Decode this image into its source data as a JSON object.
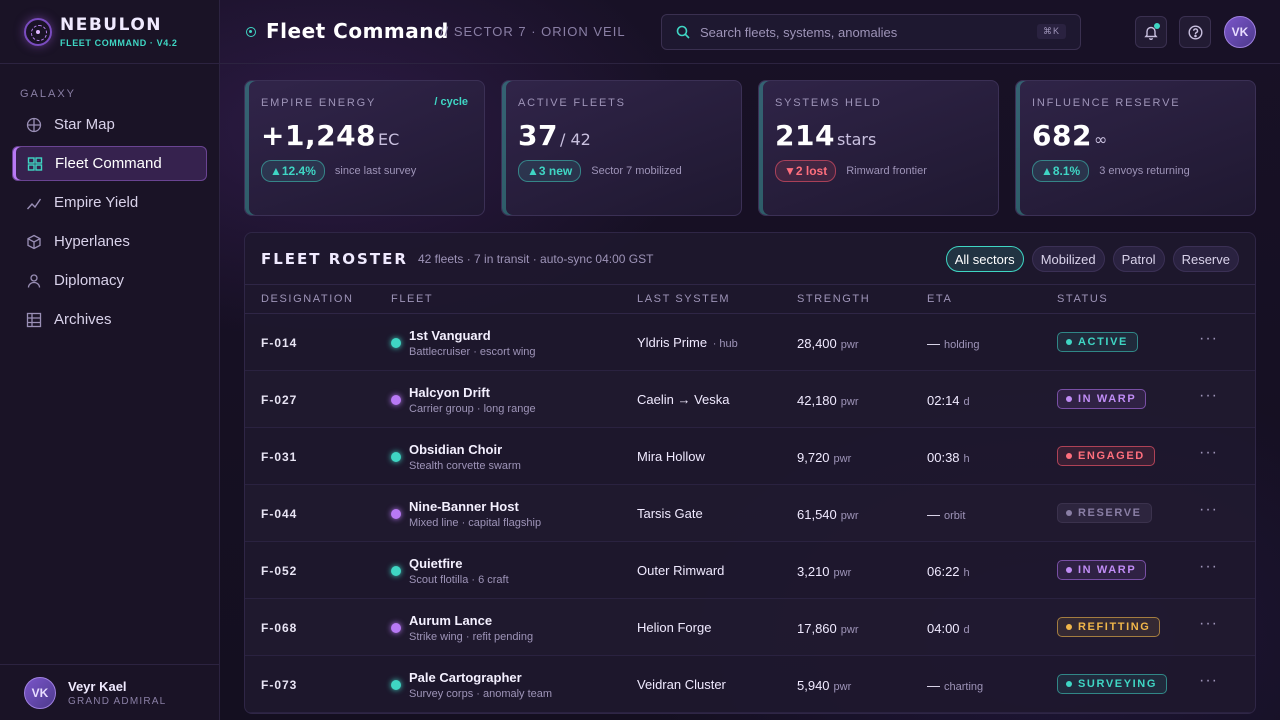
{
  "brand": {
    "name": "NEBULON",
    "sub": "FLEET COMMAND · V4.2"
  },
  "sidebar": {
    "section": "GALAXY",
    "items": [
      {
        "label": "Star Map",
        "icon": "globe-icon"
      },
      {
        "label": "Fleet Command",
        "icon": "grid-icon",
        "active": true
      },
      {
        "label": "Empire Yield",
        "icon": "trend-icon"
      },
      {
        "label": "Hyperlanes",
        "icon": "cube-icon"
      },
      {
        "label": "Diplomacy",
        "icon": "person-icon"
      },
      {
        "label": "Archives",
        "icon": "table-icon"
      }
    ]
  },
  "user": {
    "initials": "VK",
    "name": "Veyr Kael",
    "rank": "GRAND ADMIRAL"
  },
  "header": {
    "title": "Fleet Command",
    "sector": "// SECTOR 7 · ORION VEIL",
    "search_placeholder": "Search fleets, systems, anomalies",
    "shortcut": "⌘K",
    "avatar": "VK"
  },
  "stats": [
    {
      "label": "EMPIRE ENERGY",
      "tag": "/ cycle",
      "value": "+1,248",
      "unit": "EC",
      "delta": "▲12.4%",
      "dir": "up",
      "note": "since last survey"
    },
    {
      "label": "ACTIVE FLEETS",
      "tag": "",
      "value": "37",
      "unit": "/ 42",
      "delta": "▲3 new",
      "dir": "up",
      "note": "Sector 7 mobilized"
    },
    {
      "label": "SYSTEMS HELD",
      "tag": "",
      "value": "214",
      "unit": "stars",
      "delta": "▼2 lost",
      "dir": "down",
      "note": "Rimward frontier"
    },
    {
      "label": "INFLUENCE RESERVE",
      "tag": "",
      "value": "682",
      "unit": "∞",
      "delta": "▲8.1%",
      "dir": "up",
      "note": "3 envoys returning"
    }
  ],
  "roster": {
    "title": "FLEET ROSTER",
    "meta": "42 fleets · 7 in transit · auto-sync 04:00 GST",
    "filters": [
      "All sectors",
      "Mobilized",
      "Patrol",
      "Reserve"
    ],
    "columns": [
      "DESIGNATION",
      "FLEET",
      "LAST SYSTEM",
      "STRENGTH",
      "ETA",
      "STATUS"
    ],
    "rows": [
      {
        "id": "F-014",
        "name": "1st Vanguard",
        "sub": "Battlecruiser · escort wing",
        "dot": "#3fd6c4",
        "system": "Yldris Prime",
        "system_tag": "· hub",
        "strength": "28,400",
        "strength_unit": "pwr",
        "eta": "—",
        "eta_unit": "holding",
        "status": "ACTIVE",
        "status_class": "st-active"
      },
      {
        "id": "F-027",
        "name": "Halcyon Drift",
        "sub": "Carrier group · long range",
        "dot": "#b879f5",
        "system": "Caelin → Veska",
        "system_tag": "",
        "strength": "42,180",
        "strength_unit": "pwr",
        "eta": "02:14",
        "eta_unit": "d",
        "status": "IN WARP",
        "status_class": "st-warp"
      },
      {
        "id": "F-031",
        "name": "Obsidian Choir",
        "sub": "Stealth corvette swarm",
        "dot": "#3fd6c4",
        "system": "Mira Hollow",
        "system_tag": "",
        "strength": "9,720",
        "strength_unit": "pwr",
        "eta": "00:38",
        "eta_unit": "h",
        "status": "ENGAGED",
        "status_class": "st-engaged"
      },
      {
        "id": "F-044",
        "name": "Nine-Banner Host",
        "sub": "Mixed line · capital flagship",
        "dot": "#b879f5",
        "system": "Tarsis Gate",
        "system_tag": "",
        "strength": "61,540",
        "strength_unit": "pwr",
        "eta": "—",
        "eta_unit": "orbit",
        "status": "RESERVE",
        "status_class": "st-reserve"
      },
      {
        "id": "F-052",
        "name": "Quietfire",
        "sub": "Scout flotilla · 6 craft",
        "dot": "#3fd6c4",
        "system": "Outer Rimward",
        "system_tag": "",
        "strength": "3,210",
        "strength_unit": "pwr",
        "eta": "06:22",
        "eta_unit": "h",
        "status": "IN WARP",
        "status_class": "st-warp"
      },
      {
        "id": "F-068",
        "name": "Aurum Lance",
        "sub": "Strike wing · refit pending",
        "dot": "#b879f5",
        "system": "Helion Forge",
        "system_tag": "",
        "strength": "17,860",
        "strength_unit": "pwr",
        "eta": "04:00",
        "eta_unit": "d",
        "status": "REFITTING",
        "status_class": "st-refit"
      },
      {
        "id": "F-073",
        "name": "Pale Cartographer",
        "sub": "Survey corps · anomaly team",
        "dot": "#3fd6c4",
        "system": "Veidran Cluster",
        "system_tag": "",
        "strength": "5,940",
        "strength_unit": "pwr",
        "eta": "—",
        "eta_unit": "charting",
        "status": "SURVEYING",
        "status_class": "st-survey"
      }
    ]
  }
}
